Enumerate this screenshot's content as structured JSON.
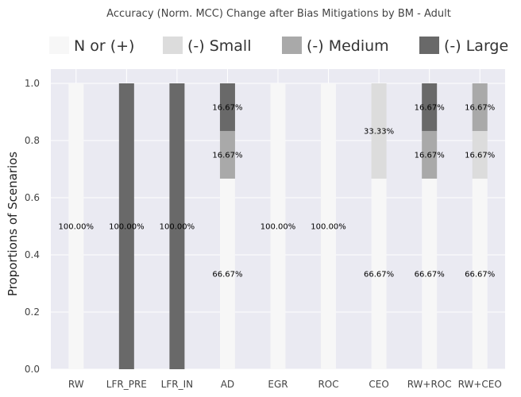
{
  "chart_data": {
    "type": "bar",
    "stacked": true,
    "title": "Accuracy (Norm. MCC) Change after Bias Mitigations by BM - Adult",
    "xlabel": "",
    "ylabel": "Proportions of Scenarios",
    "ylim": [
      0,
      1.05
    ],
    "yticks": [
      "0.0",
      "0.2",
      "0.4",
      "0.6",
      "0.8",
      "1.0"
    ],
    "grid": true,
    "legend_position": "top",
    "categories": [
      "RW",
      "LFR_PRE",
      "LFR_IN",
      "AD",
      "EGR",
      "ROC",
      "CEO",
      "RW+ROC",
      "RW+CEO"
    ],
    "series": [
      {
        "name": "N or (+)",
        "color": "#f7f7f7",
        "values": [
          1.0,
          0.0,
          0.0,
          0.6667,
          1.0,
          1.0,
          0.6667,
          0.6667,
          0.6667
        ]
      },
      {
        "name": "(-) Small",
        "color": "#dcdcdc",
        "values": [
          0.0,
          0.0,
          0.0,
          0.0,
          0.0,
          0.0,
          0.3333,
          0.0,
          0.1667
        ]
      },
      {
        "name": "(-) Medium",
        "color": "#a9a9a9",
        "values": [
          0.0,
          0.0,
          0.0,
          0.1667,
          0.0,
          0.0,
          0.0,
          0.1667,
          0.1667
        ]
      },
      {
        "name": "(-) Large",
        "color": "#696969",
        "values": [
          0.0,
          1.0,
          1.0,
          0.1667,
          0.0,
          0.0,
          0.0,
          0.1667,
          0.0
        ]
      }
    ],
    "data_labels": [
      {
        "category": "RW",
        "series": "N or (+)",
        "text": "100.00%"
      },
      {
        "category": "LFR_PRE",
        "series": "(-) Large",
        "text": "100.00%"
      },
      {
        "category": "LFR_IN",
        "series": "(-) Large",
        "text": "100.00%"
      },
      {
        "category": "AD",
        "series": "N or (+)",
        "text": "66.67%"
      },
      {
        "category": "AD",
        "series": "(-) Medium",
        "text": "16.67%"
      },
      {
        "category": "AD",
        "series": "(-) Large",
        "text": "16.67%"
      },
      {
        "category": "EGR",
        "series": "N or (+)",
        "text": "100.00%"
      },
      {
        "category": "ROC",
        "series": "N or (+)",
        "text": "100.00%"
      },
      {
        "category": "CEO",
        "series": "N or (+)",
        "text": "66.67%"
      },
      {
        "category": "CEO",
        "series": "(-) Small",
        "text": "33.33%"
      },
      {
        "category": "RW+ROC",
        "series": "N or (+)",
        "text": "66.67%"
      },
      {
        "category": "RW+ROC",
        "series": "(-) Medium",
        "text": "16.67%"
      },
      {
        "category": "RW+ROC",
        "series": "(-) Large",
        "text": "16.67%"
      },
      {
        "category": "RW+CEO",
        "series": "N or (+)",
        "text": "66.67%"
      },
      {
        "category": "RW+CEO",
        "series": "(-) Small",
        "text": "16.67%"
      },
      {
        "category": "RW+CEO",
        "series": "(-) Medium",
        "text": "16.67%"
      }
    ],
    "colors": {
      "plot_background": "#eaeaf2",
      "grid": "#ffffff"
    }
  }
}
